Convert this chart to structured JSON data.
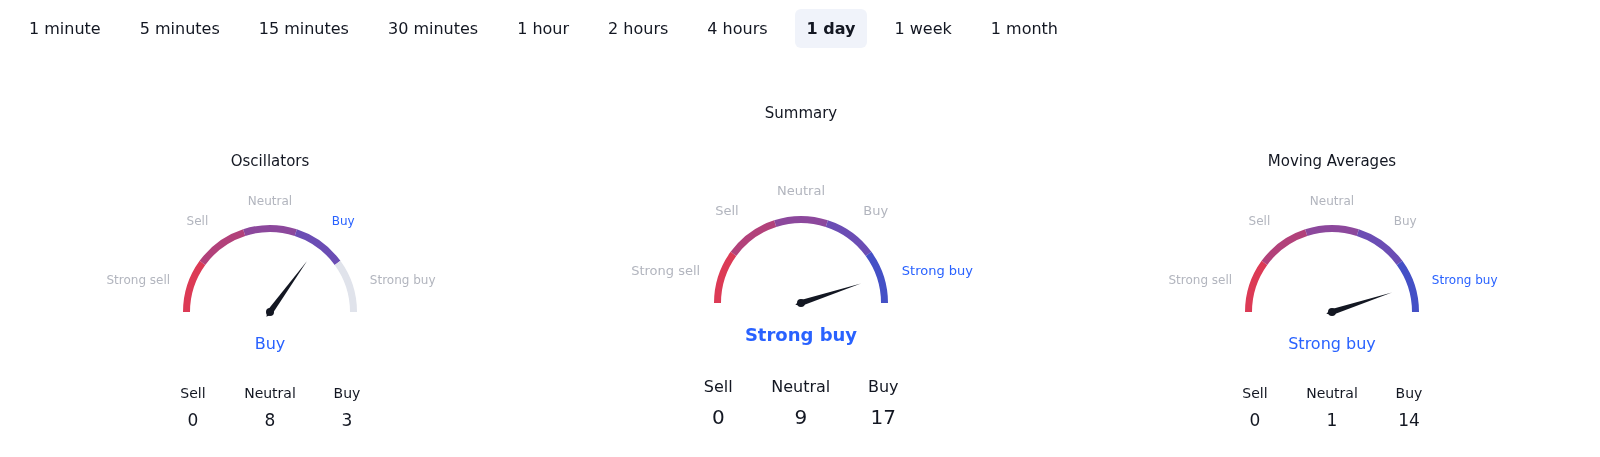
{
  "chart_data": [
    {
      "type": "other",
      "categories": [
        "1 minute",
        "5 minutes",
        "15 minutes",
        "30 minutes",
        "1 hour",
        "2 hours",
        "4 hours",
        "1 day",
        "1 week",
        "1 month"
      ],
      "colors": [
        "#ffffff",
        "#ffffff",
        "#ffffff",
        "#ffffff",
        "#ffffff",
        "#ffffff",
        "#ffffff",
        "#f0f3fa",
        "#ffffff",
        "#ffffff"
      ]
    },
    {
      "type": "donut",
      "title": "Oscillators",
      "categories": [
        "Strong sell",
        "Sell",
        "Neutral",
        "Buy",
        "Strong buy"
      ],
      "values": [
        20,
        20,
        20,
        20,
        20
      ],
      "colors": [
        "#dc3a55",
        "#b2417a",
        "#8c489c",
        "#6b4db4",
        "#e0e3eb"
      ],
      "needle": "Buy"
    },
    {
      "type": "other",
      "categories": [
        "Sell",
        "Neutral",
        "Buy"
      ],
      "values": [
        0,
        8,
        3
      ],
      "data_labels": true
    },
    {
      "type": "donut",
      "title": "Summary",
      "categories": [
        "Strong sell",
        "Sell",
        "Neutral",
        "Buy",
        "Strong buy"
      ],
      "values": [
        20,
        20,
        20,
        20,
        20
      ],
      "colors": [
        "#dc3a55",
        "#b2417a",
        "#8c489c",
        "#6b4db4",
        "#4450c6"
      ],
      "needle": "Strong buy"
    },
    {
      "type": "other",
      "categories": [
        "Sell",
        "Neutral",
        "Buy"
      ],
      "values": [
        0,
        9,
        17
      ],
      "data_labels": true
    },
    {
      "type": "donut",
      "title": "Moving Averages",
      "categories": [
        "Strong sell",
        "Sell",
        "Neutral",
        "Buy",
        "Strong buy"
      ],
      "values": [
        20,
        20,
        20,
        20,
        20
      ],
      "colors": [
        "#dc3a55",
        "#b2417a",
        "#8c489c",
        "#6b4db4",
        "#4450c6"
      ],
      "needle": "Strong buy"
    },
    {
      "type": "other",
      "categories": [
        "Sell",
        "Neutral",
        "Buy"
      ],
      "values": [
        0,
        1,
        14
      ],
      "data_labels": true
    }
  ]
}
